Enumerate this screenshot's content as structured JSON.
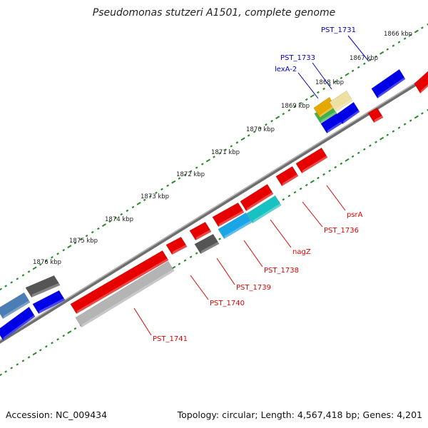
{
  "title": "Pseudomonas stutzeri A1501, complete genome",
  "footer": {
    "accession": "Accession: NC_009434",
    "info": "Topology: circular; Length: 4,567,418 bp; Genes: 4,201"
  },
  "colors": {
    "forward_label": "#0000c8",
    "reverse_label": "#e00000",
    "backbone": "#777777",
    "ticks": "#2a8a2a"
  },
  "ruler_labels": [
    "1866 kbp",
    "1867 kbp",
    "1868 kbp",
    "1869 kbp",
    "1870 kbp",
    "1871 kbp",
    "1872 kbp",
    "1873 kbp",
    "1874 kbp",
    "1875 kbp",
    "1876 kbp"
  ],
  "gene_labels": [
    {
      "name": "PST_1731",
      "strand": "forward"
    },
    {
      "name": "PST_1733",
      "strand": "forward"
    },
    {
      "name": "lexA-2",
      "strand": "forward"
    },
    {
      "name": "psrA",
      "strand": "reverse"
    },
    {
      "name": "PST_1736",
      "strand": "reverse"
    },
    {
      "name": "nagZ",
      "strand": "reverse"
    },
    {
      "name": "PST_1738",
      "strand": "reverse"
    },
    {
      "name": "PST_1739",
      "strand": "reverse"
    },
    {
      "name": "PST_1740",
      "strand": "reverse"
    },
    {
      "name": "PST_1741",
      "strand": "reverse"
    }
  ]
}
